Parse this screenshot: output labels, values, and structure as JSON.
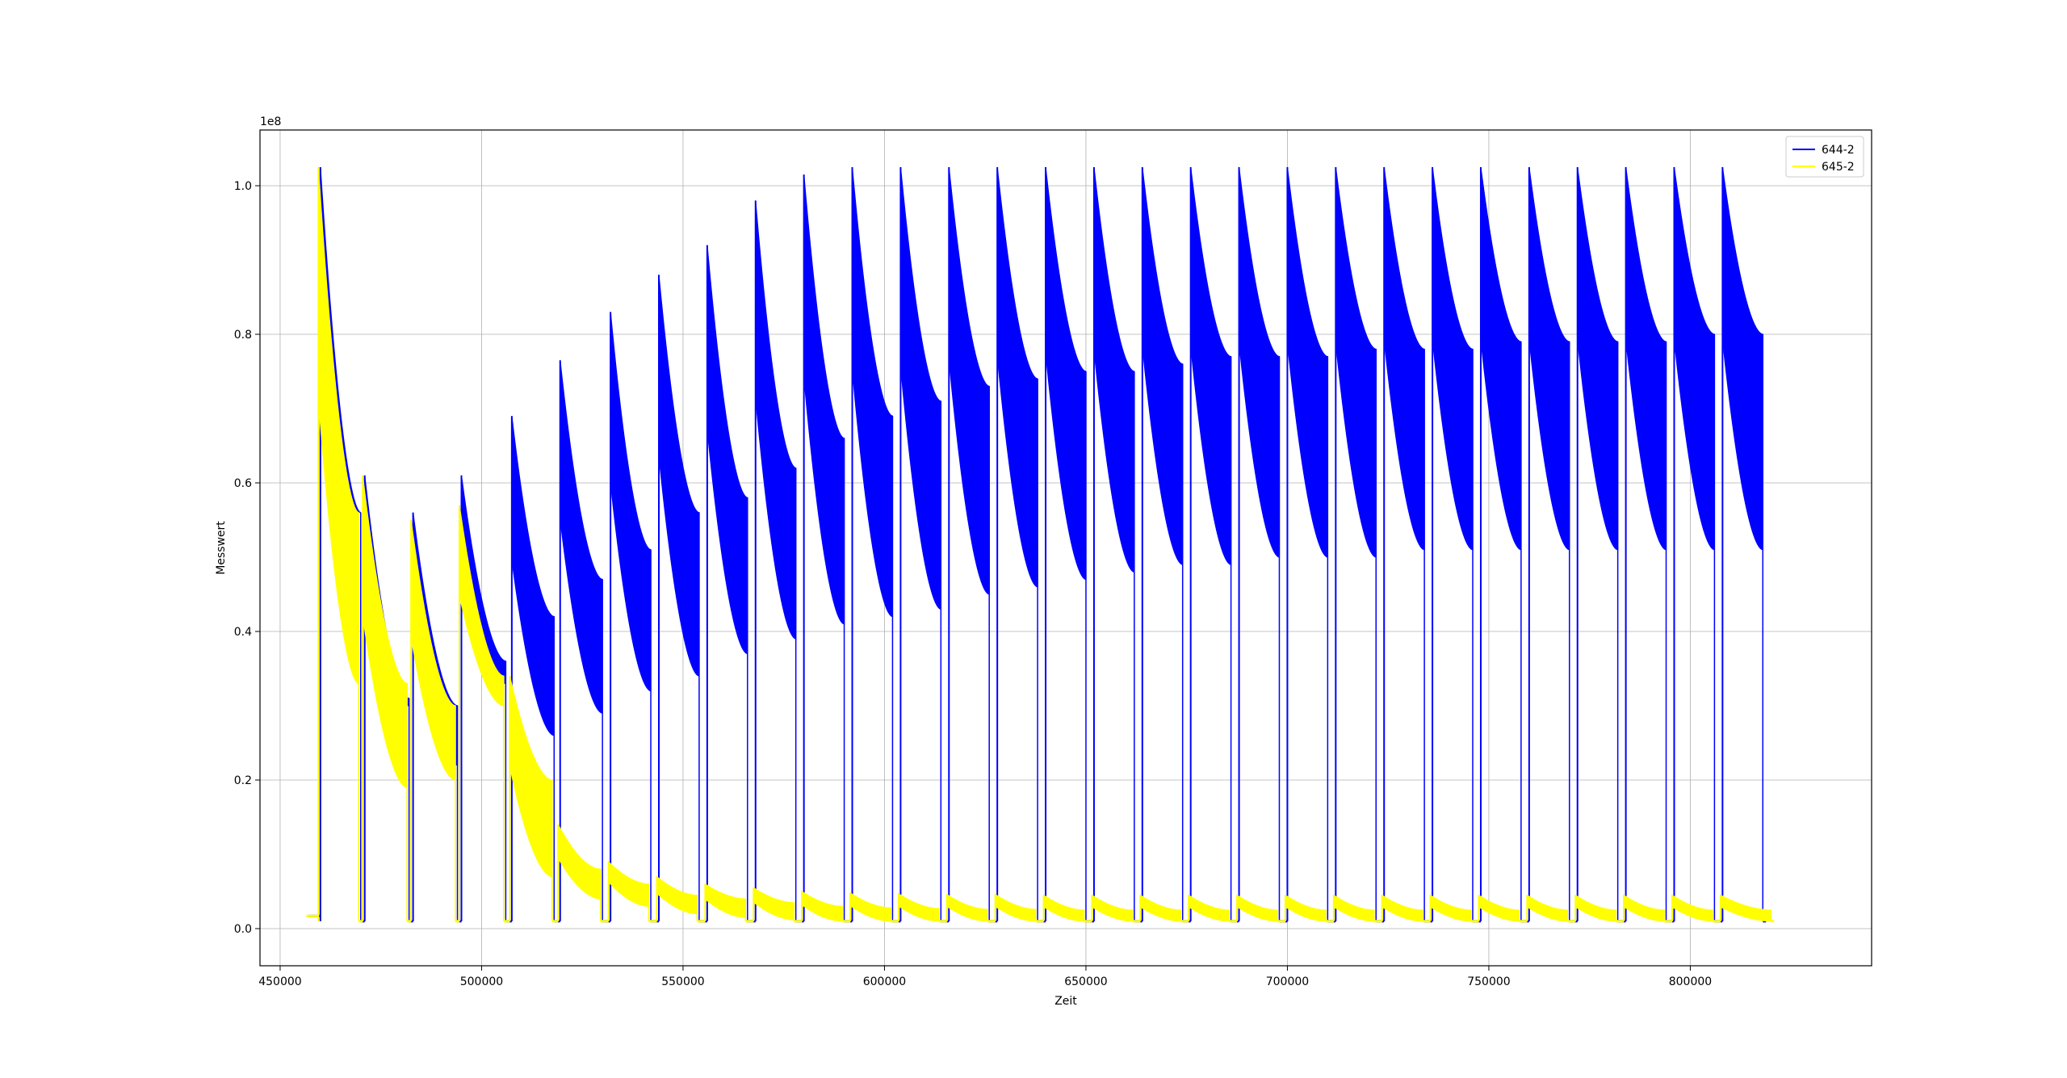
{
  "chart_data": {
    "type": "line",
    "title": "",
    "xlabel": "Zeit",
    "ylabel": "Messwert",
    "y_offset_text": "1e8",
    "xlim": [
      445000,
      845000
    ],
    "ylim": [
      -0.05,
      1.075
    ],
    "y_scale_note": "values in units of 1e8",
    "grid": true,
    "legend_position": "upper right",
    "x_ticks": [
      450000,
      500000,
      550000,
      600000,
      650000,
      700000,
      750000,
      800000
    ],
    "x_tick_labels": [
      "450000",
      "500000",
      "550000",
      "600000",
      "650000",
      "700000",
      "750000",
      "800000"
    ],
    "y_ticks": [
      0.0,
      0.2,
      0.4,
      0.6,
      0.8,
      1.0
    ],
    "y_tick_labels": [
      "0.0",
      "0.2",
      "0.4",
      "0.6",
      "0.8",
      "1.0"
    ],
    "series": [
      {
        "name": "644-2",
        "color": "#0000ff",
        "cycles": [
          {
            "start": 460000,
            "end": 470000,
            "peak": 1.025,
            "top_end": 0.56,
            "bottom_end": 0.56
          },
          {
            "start": 471000,
            "end": 482000,
            "peak": 0.61,
            "top_end": 0.31,
            "bottom_end": 0.3
          },
          {
            "start": 483000,
            "end": 494000,
            "peak": 0.56,
            "top_end": 0.3,
            "bottom_end": 0.22
          },
          {
            "start": 495000,
            "end": 506000,
            "peak": 0.61,
            "top_end": 0.36,
            "bottom_end": 0.33
          },
          {
            "start": 507500,
            "end": 518000,
            "peak": 0.69,
            "top_end": 0.42,
            "bottom_end": 0.26
          },
          {
            "start": 519500,
            "end": 530000,
            "peak": 0.765,
            "top_end": 0.47,
            "bottom_end": 0.29
          },
          {
            "start": 532000,
            "end": 542000,
            "peak": 0.83,
            "top_end": 0.51,
            "bottom_end": 0.32
          },
          {
            "start": 544000,
            "end": 554000,
            "peak": 0.88,
            "top_end": 0.56,
            "bottom_end": 0.34
          },
          {
            "start": 556000,
            "end": 566000,
            "peak": 0.92,
            "top_end": 0.58,
            "bottom_end": 0.37
          },
          {
            "start": 568000,
            "end": 578000,
            "peak": 0.98,
            "top_end": 0.62,
            "bottom_end": 0.39
          },
          {
            "start": 580000,
            "end": 590000,
            "peak": 1.015,
            "top_end": 0.66,
            "bottom_end": 0.41
          },
          {
            "start": 592000,
            "end": 602000,
            "peak": 1.025,
            "top_end": 0.69,
            "bottom_end": 0.42
          },
          {
            "start": 604000,
            "end": 614000,
            "peak": 1.025,
            "top_end": 0.71,
            "bottom_end": 0.43
          },
          {
            "start": 616000,
            "end": 626000,
            "peak": 1.025,
            "top_end": 0.73,
            "bottom_end": 0.45
          },
          {
            "start": 628000,
            "end": 638000,
            "peak": 1.025,
            "top_end": 0.74,
            "bottom_end": 0.46
          },
          {
            "start": 640000,
            "end": 650000,
            "peak": 1.025,
            "top_end": 0.75,
            "bottom_end": 0.47
          },
          {
            "start": 652000,
            "end": 662000,
            "peak": 1.025,
            "top_end": 0.75,
            "bottom_end": 0.48
          },
          {
            "start": 664000,
            "end": 674000,
            "peak": 1.025,
            "top_end": 0.76,
            "bottom_end": 0.49
          },
          {
            "start": 676000,
            "end": 686000,
            "peak": 1.025,
            "top_end": 0.77,
            "bottom_end": 0.49
          },
          {
            "start": 688000,
            "end": 698000,
            "peak": 1.025,
            "top_end": 0.77,
            "bottom_end": 0.5
          },
          {
            "start": 700000,
            "end": 710000,
            "peak": 1.025,
            "top_end": 0.77,
            "bottom_end": 0.5
          },
          {
            "start": 712000,
            "end": 722000,
            "peak": 1.025,
            "top_end": 0.78,
            "bottom_end": 0.5
          },
          {
            "start": 724000,
            "end": 734000,
            "peak": 1.025,
            "top_end": 0.78,
            "bottom_end": 0.51
          },
          {
            "start": 736000,
            "end": 746000,
            "peak": 1.025,
            "top_end": 0.78,
            "bottom_end": 0.51
          },
          {
            "start": 748000,
            "end": 758000,
            "peak": 1.025,
            "top_end": 0.79,
            "bottom_end": 0.51
          },
          {
            "start": 760000,
            "end": 770000,
            "peak": 1.025,
            "top_end": 0.79,
            "bottom_end": 0.51
          },
          {
            "start": 772000,
            "end": 782000,
            "peak": 1.025,
            "top_end": 0.79,
            "bottom_end": 0.51
          },
          {
            "start": 784000,
            "end": 794000,
            "peak": 1.025,
            "top_end": 0.79,
            "bottom_end": 0.51
          },
          {
            "start": 796000,
            "end": 806000,
            "peak": 1.025,
            "top_end": 0.8,
            "bottom_end": 0.51
          },
          {
            "start": 808000,
            "end": 818000,
            "peak": 1.025,
            "top_end": 0.8,
            "bottom_end": 0.51
          }
        ],
        "baseline": 0.01
      },
      {
        "name": "645-2",
        "color": "#ffff00",
        "cycles": [
          {
            "start": 459500,
            "end": 469500,
            "peak": 1.025,
            "top_end": 0.56,
            "bottom_end": 0.33
          },
          {
            "start": 470500,
            "end": 481500,
            "peak": 0.61,
            "top_end": 0.33,
            "bottom_end": 0.19
          },
          {
            "start": 482500,
            "end": 493500,
            "peak": 0.55,
            "top_end": 0.3,
            "bottom_end": 0.2
          },
          {
            "start": 494500,
            "end": 505500,
            "peak": 0.57,
            "top_end": 0.34,
            "bottom_end": 0.3
          },
          {
            "start": 507000,
            "end": 517500,
            "peak": 0.34,
            "top_end": 0.2,
            "bottom_end": 0.07
          },
          {
            "start": 519000,
            "end": 529500,
            "peak": 0.14,
            "top_end": 0.08,
            "bottom_end": 0.04
          },
          {
            "start": 531500,
            "end": 541500,
            "peak": 0.09,
            "top_end": 0.06,
            "bottom_end": 0.03
          },
          {
            "start": 543500,
            "end": 553500,
            "peak": 0.07,
            "top_end": 0.045,
            "bottom_end": 0.02
          },
          {
            "start": 555500,
            "end": 565500,
            "peak": 0.06,
            "top_end": 0.04,
            "bottom_end": 0.015
          },
          {
            "start": 567500,
            "end": 577500,
            "peak": 0.055,
            "top_end": 0.035,
            "bottom_end": 0.012
          },
          {
            "start": 579500,
            "end": 589500,
            "peak": 0.05,
            "top_end": 0.03,
            "bottom_end": 0.01
          },
          {
            "start": 591500,
            "end": 601500,
            "peak": 0.048,
            "top_end": 0.028,
            "bottom_end": 0.01
          },
          {
            "start": 603500,
            "end": 613500,
            "peak": 0.047,
            "top_end": 0.027,
            "bottom_end": 0.01
          },
          {
            "start": 615500,
            "end": 625500,
            "peak": 0.046,
            "top_end": 0.026,
            "bottom_end": 0.01
          },
          {
            "start": 627500,
            "end": 637500,
            "peak": 0.046,
            "top_end": 0.026,
            "bottom_end": 0.01
          },
          {
            "start": 639500,
            "end": 649500,
            "peak": 0.045,
            "top_end": 0.025,
            "bottom_end": 0.01
          },
          {
            "start": 651500,
            "end": 661500,
            "peak": 0.045,
            "top_end": 0.025,
            "bottom_end": 0.01
          },
          {
            "start": 663500,
            "end": 673500,
            "peak": 0.045,
            "top_end": 0.025,
            "bottom_end": 0.01
          },
          {
            "start": 675500,
            "end": 685500,
            "peak": 0.045,
            "top_end": 0.025,
            "bottom_end": 0.01
          },
          {
            "start": 687500,
            "end": 697500,
            "peak": 0.045,
            "top_end": 0.025,
            "bottom_end": 0.01
          },
          {
            "start": 699500,
            "end": 709500,
            "peak": 0.045,
            "top_end": 0.025,
            "bottom_end": 0.01
          },
          {
            "start": 711500,
            "end": 721500,
            "peak": 0.045,
            "top_end": 0.025,
            "bottom_end": 0.01
          },
          {
            "start": 723500,
            "end": 733500,
            "peak": 0.045,
            "top_end": 0.025,
            "bottom_end": 0.01
          },
          {
            "start": 735500,
            "end": 745500,
            "peak": 0.045,
            "top_end": 0.025,
            "bottom_end": 0.01
          },
          {
            "start": 747500,
            "end": 757500,
            "peak": 0.045,
            "top_end": 0.025,
            "bottom_end": 0.01
          },
          {
            "start": 759500,
            "end": 769500,
            "peak": 0.045,
            "top_end": 0.025,
            "bottom_end": 0.01
          },
          {
            "start": 771500,
            "end": 781500,
            "peak": 0.045,
            "top_end": 0.025,
            "bottom_end": 0.01
          },
          {
            "start": 783500,
            "end": 793500,
            "peak": 0.045,
            "top_end": 0.025,
            "bottom_end": 0.01
          },
          {
            "start": 795500,
            "end": 805500,
            "peak": 0.045,
            "top_end": 0.025,
            "bottom_end": 0.01
          },
          {
            "start": 807500,
            "end": 820000,
            "peak": 0.045,
            "top_end": 0.025,
            "bottom_end": 0.01
          }
        ],
        "baseline": 0.01
      }
    ]
  }
}
